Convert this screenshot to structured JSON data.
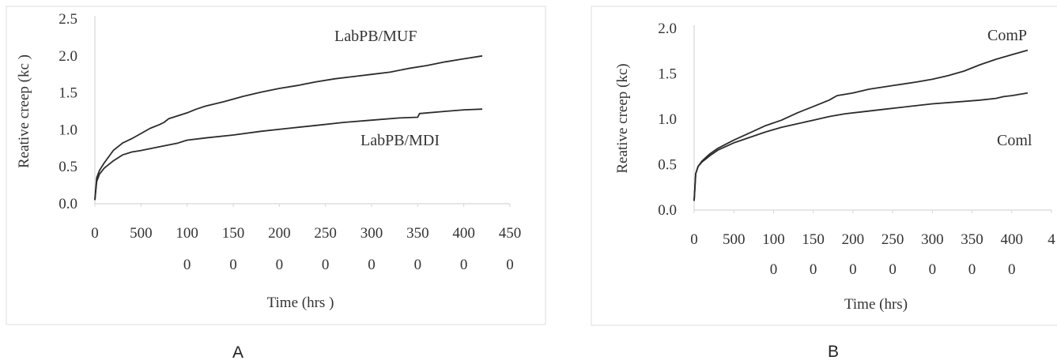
{
  "chart_data": [
    {
      "panel": "A",
      "type": "line",
      "xlabel": "Time (hrs )",
      "ylabel": "Reative creep (kc )",
      "xlim": [
        0,
        4500
      ],
      "ylim": [
        0,
        2.5
      ],
      "x_tick_lines": [
        [
          "0",
          ""
        ],
        [
          "500",
          ""
        ],
        [
          "100",
          "0"
        ],
        [
          "150",
          "0"
        ],
        [
          "200",
          "0"
        ],
        [
          "250",
          "0"
        ],
        [
          "300",
          "0"
        ],
        [
          "350",
          "0"
        ],
        [
          "400",
          "0"
        ],
        [
          "450",
          "0"
        ]
      ],
      "y_ticks": [
        "0.0",
        "0.5",
        "1.0",
        "1.5",
        "2.0",
        "2.5"
      ],
      "series": [
        {
          "name": "LabPB/MUF",
          "x": [
            0,
            20,
            50,
            100,
            200,
            300,
            400,
            500,
            600,
            700,
            750,
            800,
            900,
            1000,
            1100,
            1200,
            1400,
            1600,
            1800,
            2000,
            2200,
            2400,
            2600,
            2800,
            3000,
            3200,
            3400,
            3600,
            3800,
            4000,
            4200
          ],
          "values": [
            0.05,
            0.35,
            0.45,
            0.55,
            0.72,
            0.82,
            0.88,
            0.95,
            1.02,
            1.07,
            1.1,
            1.15,
            1.19,
            1.23,
            1.28,
            1.32,
            1.38,
            1.45,
            1.51,
            1.56,
            1.6,
            1.65,
            1.69,
            1.72,
            1.75,
            1.78,
            1.83,
            1.87,
            1.92,
            1.96,
            2.0
          ]
        },
        {
          "name": "LabPB/MDI",
          "x": [
            0,
            20,
            50,
            100,
            200,
            300,
            400,
            500,
            700,
            900,
            1000,
            1200,
            1500,
            1800,
            2100,
            2400,
            2700,
            3000,
            3300,
            3500,
            3520,
            3800,
            4000,
            4200
          ],
          "values": [
            0.05,
            0.3,
            0.4,
            0.48,
            0.58,
            0.66,
            0.7,
            0.72,
            0.77,
            0.82,
            0.86,
            0.89,
            0.93,
            0.98,
            1.02,
            1.06,
            1.1,
            1.13,
            1.16,
            1.17,
            1.22,
            1.25,
            1.27,
            1.28
          ]
        }
      ],
      "panel_label": "A"
    },
    {
      "panel": "B",
      "type": "line",
      "xlabel": "Time (hrs)",
      "ylabel": "Reative creep (kc)",
      "xlim": [
        0,
        4500
      ],
      "ylim": [
        0,
        2.0
      ],
      "x_tick_lines": [
        [
          "0",
          ""
        ],
        [
          "500",
          ""
        ],
        [
          "100",
          "0"
        ],
        [
          "150",
          "0"
        ],
        [
          "200",
          "0"
        ],
        [
          "250",
          "0"
        ],
        [
          "300",
          "0"
        ],
        [
          "350",
          "0"
        ],
        [
          "400",
          "0"
        ],
        [
          "4",
          ""
        ]
      ],
      "y_ticks": [
        "0.0",
        "0.5",
        "1.0",
        "1.5",
        "2.0"
      ],
      "series": [
        {
          "name": "ComP",
          "x": [
            0,
            20,
            50,
            100,
            200,
            300,
            500,
            700,
            900,
            1100,
            1300,
            1500,
            1700,
            1800,
            2000,
            2200,
            2500,
            2800,
            3000,
            3200,
            3400,
            3600,
            3800,
            4000,
            4200
          ],
          "values": [
            0.1,
            0.4,
            0.48,
            0.54,
            0.62,
            0.68,
            0.77,
            0.85,
            0.93,
            0.99,
            1.07,
            1.14,
            1.21,
            1.26,
            1.29,
            1.33,
            1.37,
            1.41,
            1.44,
            1.48,
            1.53,
            1.6,
            1.66,
            1.71,
            1.76
          ]
        },
        {
          "name": "Coml",
          "x": [
            0,
            20,
            50,
            100,
            200,
            300,
            500,
            700,
            900,
            1100,
            1300,
            1500,
            1700,
            1900,
            2100,
            2400,
            2700,
            3000,
            3300,
            3600,
            3800,
            3900,
            4000,
            4200
          ],
          "values": [
            0.1,
            0.4,
            0.48,
            0.53,
            0.6,
            0.66,
            0.74,
            0.8,
            0.86,
            0.91,
            0.95,
            0.99,
            1.03,
            1.06,
            1.08,
            1.11,
            1.14,
            1.17,
            1.19,
            1.21,
            1.23,
            1.25,
            1.26,
            1.29
          ]
        }
      ],
      "panel_label": "B"
    }
  ]
}
